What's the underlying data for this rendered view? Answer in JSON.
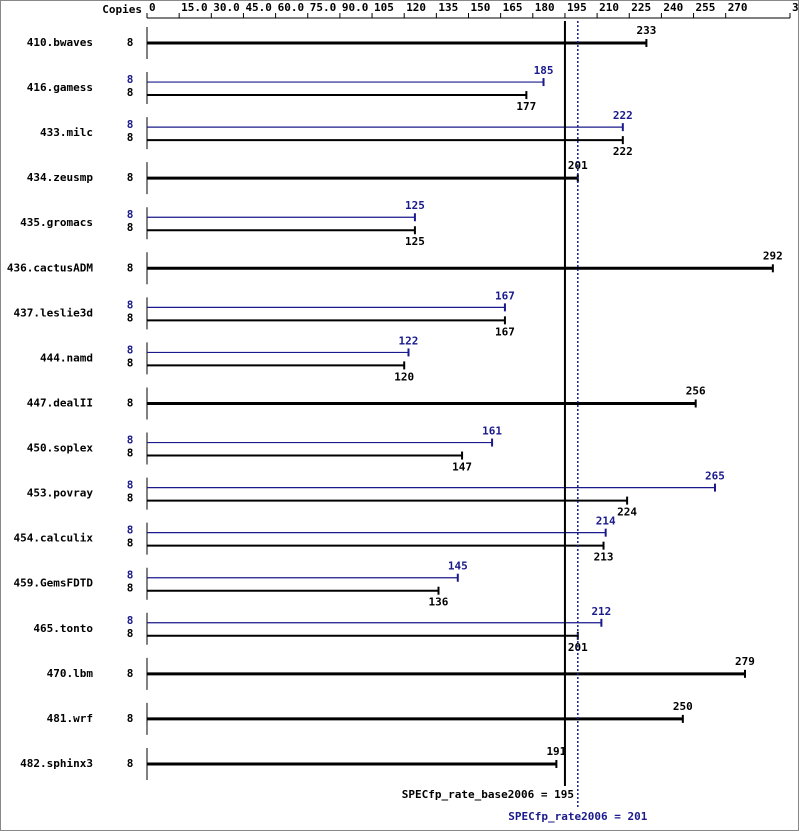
{
  "chart_data": {
    "type": "bar",
    "copies_header": "Copies",
    "categories": [
      "410.bwaves",
      "416.gamess",
      "433.milc",
      "434.zeusmp",
      "435.gromacs",
      "436.cactusADM",
      "437.leslie3d",
      "444.namd",
      "447.dealII",
      "450.soplex",
      "453.povray",
      "454.calculix",
      "459.GemsFDTD",
      "465.tonto",
      "470.lbm",
      "481.wrf",
      "482.sphinx3"
    ],
    "series": [
      {
        "color": "#1a1a8c",
        "copies": [
          null,
          8,
          8,
          null,
          8,
          null,
          8,
          8,
          null,
          8,
          8,
          8,
          8,
          8,
          null,
          null,
          null
        ],
        "values": [
          null,
          185,
          222,
          null,
          125,
          null,
          167,
          122,
          null,
          161,
          265,
          214,
          145,
          212,
          null,
          null,
          null
        ]
      },
      {
        "color": "#000000",
        "copies": [
          8,
          8,
          8,
          8,
          8,
          8,
          8,
          8,
          8,
          8,
          8,
          8,
          8,
          8,
          8,
          8,
          8
        ],
        "values": [
          233,
          177,
          222,
          201,
          125,
          292,
          167,
          120,
          256,
          147,
          224,
          213,
          136,
          201,
          279,
          250,
          191
        ]
      }
    ],
    "xlim": [
      0,
      300
    ],
    "xticks": [
      0,
      {
        "value": 15,
        "label": "15.0"
      },
      {
        "value": 30,
        "label": "30.0"
      },
      {
        "value": 45,
        "label": "45.0"
      },
      {
        "value": 60,
        "label": "60.0"
      },
      {
        "value": 75,
        "label": "75.0"
      },
      {
        "value": 90,
        "label": "90.0"
      },
      105,
      120,
      135,
      150,
      165,
      180,
      195,
      210,
      225,
      240,
      255,
      270,
      300
    ],
    "reference_lines": [
      {
        "label": "SPECfp_rate_base2006 = 195",
        "value": 195,
        "color": "#000000"
      },
      {
        "label": "SPECfp_rate2006 = 201",
        "value": 201,
        "color": "#1a1a8c"
      }
    ]
  }
}
